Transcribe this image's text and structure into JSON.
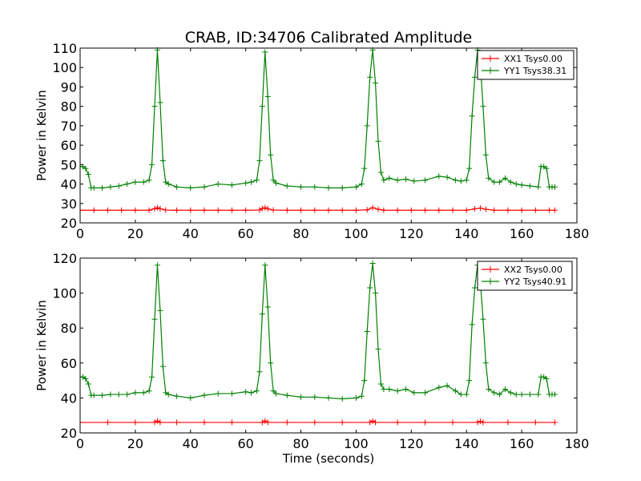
{
  "chart_data": [
    {
      "type": "line",
      "title": "CRAB, ID:34706 Calibrated Amplitude",
      "xlabel": "",
      "ylabel": "Power in Kelvin",
      "xlim": [
        0,
        180
      ],
      "ylim": [
        20,
        110
      ],
      "xticks": [
        "0",
        "20",
        "40",
        "60",
        "80",
        "100",
        "120",
        "140",
        "160",
        "180"
      ],
      "yticks": [
        "20",
        "30",
        "40",
        "50",
        "60",
        "70",
        "80",
        "90",
        "100",
        "110"
      ],
      "legend_position": "top-right",
      "grid": false,
      "series": [
        {
          "name": "XX1 Tsys0.00",
          "color": "#ff0000",
          "x": [
            0,
            5,
            10,
            15,
            20,
            25,
            27,
            28,
            29,
            31,
            35,
            40,
            45,
            50,
            55,
            60,
            65,
            66,
            67,
            68,
            70,
            75,
            80,
            85,
            90,
            95,
            100,
            104,
            106,
            108,
            110,
            115,
            120,
            125,
            130,
            135,
            140,
            143,
            145,
            147,
            150,
            155,
            160,
            165,
            170,
            172
          ],
          "y": [
            26.5,
            26.5,
            26.5,
            26.5,
            26.5,
            26.5,
            27.3,
            27.8,
            27.3,
            26.6,
            26.5,
            26.5,
            26.5,
            26.5,
            26.5,
            26.5,
            26.6,
            27.4,
            27.8,
            27.2,
            26.6,
            26.5,
            26.5,
            26.5,
            26.5,
            26.5,
            26.5,
            26.7,
            27.8,
            27.0,
            26.5,
            26.5,
            26.5,
            26.5,
            26.5,
            26.5,
            26.5,
            27.2,
            27.6,
            27.0,
            26.5,
            26.5,
            26.5,
            26.5,
            26.5,
            26.5
          ]
        },
        {
          "name": "YY1 Tsys38.31",
          "color": "#008000",
          "x": [
            0,
            1,
            2,
            3,
            4,
            5,
            8,
            11,
            14,
            17,
            20,
            23,
            25,
            26,
            27,
            28,
            29,
            30,
            31,
            32,
            35,
            40,
            45,
            50,
            55,
            60,
            62,
            64,
            65,
            66,
            67,
            68,
            69,
            70,
            71,
            75,
            80,
            85,
            90,
            95,
            100,
            102,
            103,
            104,
            105,
            106,
            107,
            108,
            109,
            110,
            112,
            115,
            118,
            121,
            125,
            130,
            133,
            136,
            138,
            140,
            141,
            142,
            143,
            144,
            145,
            146,
            147,
            148,
            150,
            152,
            154,
            156,
            158,
            160,
            163,
            166,
            167,
            168,
            169,
            170,
            171,
            172
          ],
          "y": [
            49,
            49,
            48,
            45,
            38,
            38,
            38,
            38.5,
            39,
            40,
            41,
            41,
            42,
            50,
            80,
            109,
            82,
            52,
            41,
            40,
            38.5,
            38,
            38.5,
            40,
            39.5,
            40.5,
            41,
            42,
            52,
            80,
            108,
            85,
            55,
            42,
            40.5,
            39,
            38.5,
            38.5,
            38,
            38,
            38.5,
            40,
            48,
            70,
            95,
            109,
            92,
            62,
            46,
            42,
            43,
            42,
            42.5,
            41.5,
            42,
            44,
            43.5,
            42,
            41.5,
            42,
            48,
            75,
            95,
            109,
            102,
            80,
            55,
            43,
            41,
            41,
            43,
            41,
            40,
            39.5,
            39,
            38.5,
            49,
            49,
            48,
            38.5,
            38.5,
            38.5
          ]
        }
      ]
    },
    {
      "type": "line",
      "title": "",
      "xlabel": "Time (seconds)",
      "ylabel": "Power in Kelvin",
      "xlim": [
        0,
        180
      ],
      "ylim": [
        20,
        120
      ],
      "xticks": [
        "0",
        "20",
        "40",
        "60",
        "80",
        "100",
        "120",
        "140",
        "160",
        "180"
      ],
      "yticks": [
        "20",
        "40",
        "60",
        "80",
        "100",
        "120"
      ],
      "legend_position": "top-right",
      "grid": false,
      "series": [
        {
          "name": "XX2 Tsys0.00",
          "color": "#ff0000",
          "x": [
            0,
            10,
            20,
            27,
            28,
            29,
            35,
            45,
            55,
            66,
            67,
            68,
            75,
            85,
            95,
            105,
            106,
            107,
            115,
            125,
            135,
            144,
            145,
            146,
            155,
            165,
            172
          ],
          "y": [
            26,
            26,
            26,
            26,
            26.8,
            26,
            26,
            26,
            26,
            26,
            26.8,
            26,
            26,
            26,
            26,
            26,
            26.8,
            26,
            26,
            26,
            26,
            26,
            26.6,
            26,
            26,
            26,
            26
          ]
        },
        {
          "name": "YY2 Tsys40.91",
          "color": "#008000",
          "x": [
            0,
            1,
            2,
            3,
            4,
            5,
            8,
            11,
            14,
            17,
            20,
            23,
            25,
            26,
            27,
            28,
            29,
            30,
            31,
            32,
            35,
            40,
            45,
            50,
            55,
            60,
            62,
            64,
            65,
            66,
            67,
            68,
            69,
            70,
            71,
            75,
            80,
            85,
            90,
            95,
            100,
            102,
            103,
            104,
            105,
            106,
            107,
            108,
            109,
            110,
            112,
            115,
            118,
            121,
            125,
            130,
            133,
            136,
            138,
            140,
            141,
            142,
            143,
            144,
            145,
            146,
            147,
            148,
            150,
            152,
            154,
            156,
            158,
            160,
            163,
            166,
            167,
            168,
            169,
            170,
            171,
            172
          ],
          "y": [
            52,
            52,
            51,
            48,
            41.5,
            41.5,
            41.5,
            42,
            42,
            42,
            43,
            43,
            44,
            52,
            85,
            116,
            90,
            58,
            43,
            42,
            41,
            40,
            41.5,
            42.5,
            42.5,
            43.5,
            43,
            44,
            55,
            88,
            116,
            92,
            60,
            44,
            42.5,
            41.5,
            40.5,
            40.5,
            40,
            39.5,
            40,
            41,
            50,
            78,
            103,
            117,
            100,
            68,
            48,
            45,
            45,
            44,
            45,
            43,
            43,
            46,
            47,
            44,
            42,
            42,
            50,
            82,
            103,
            116,
            107,
            85,
            60,
            45,
            43,
            42,
            45,
            43,
            42,
            42,
            42,
            42,
            52,
            52,
            51,
            42,
            42,
            42
          ]
        }
      ]
    }
  ]
}
